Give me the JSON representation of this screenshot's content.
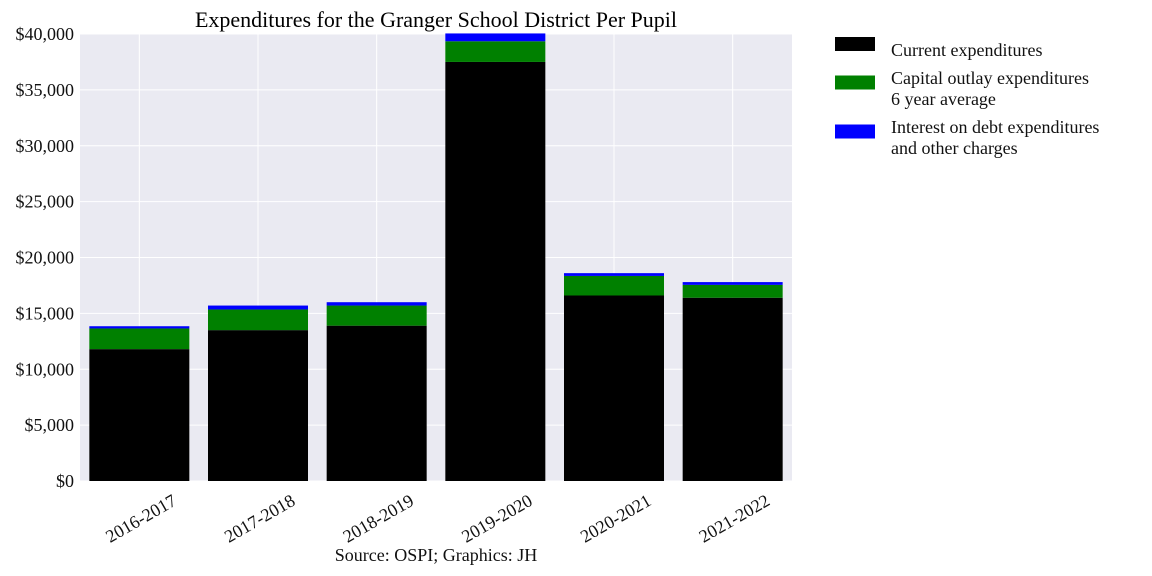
{
  "chart_data": {
    "type": "bar",
    "stacked": true,
    "title": "Expenditures for the Granger School District Per Pupil",
    "xlabel": "Source: OSPI; Graphics: JH",
    "ylabel": "",
    "categories": [
      "2016-2017",
      "2017-2018",
      "2018-2019",
      "2019-2020",
      "2020-2021",
      "2021-2022"
    ],
    "series": [
      {
        "name": "Current expenditures",
        "color": "#000000",
        "values": [
          11800,
          13500,
          13900,
          37500,
          16600,
          16400
        ]
      },
      {
        "name": "Capital outlay expenditures\n6 year average",
        "color": "#008000",
        "values": [
          1850,
          1850,
          1800,
          1850,
          1750,
          1150
        ]
      },
      {
        "name": "Interest on debt expenditures\nand other charges",
        "color": "#0000ff",
        "values": [
          200,
          350,
          300,
          700,
          250,
          250
        ]
      }
    ],
    "ylim": [
      0,
      40000
    ],
    "yticks": [
      0,
      5000,
      10000,
      15000,
      20000,
      25000,
      30000,
      35000,
      40000
    ],
    "ytick_labels": [
      "$0",
      "$5,000",
      "$10,000",
      "$15,000",
      "$20,000",
      "$25,000",
      "$30,000",
      "$35,000",
      "$40,000"
    ],
    "grid": true,
    "legend_position": "outside-right-top",
    "background_color": "#eaeaf2"
  }
}
